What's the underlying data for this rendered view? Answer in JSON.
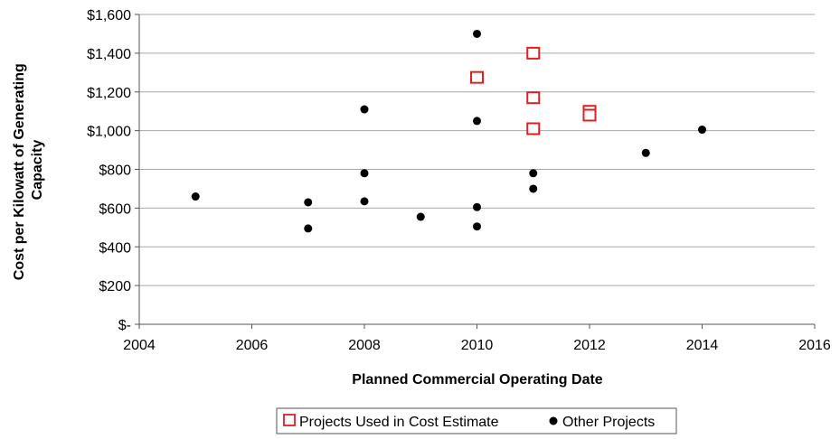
{
  "chart_data": {
    "type": "scatter",
    "title": "",
    "xlabel": "Planned Commercial Operating Date",
    "ylabel": "Cost per Kilowatt of Generating Capacity",
    "xlim": [
      2004,
      2016
    ],
    "ylim": [
      0,
      1600
    ],
    "x_ticks": [
      2004,
      2006,
      2008,
      2010,
      2012,
      2014,
      2016
    ],
    "x_tick_labels": [
      "2004",
      "2006",
      "2008",
      "2010",
      "2012",
      "2014",
      "2016"
    ],
    "y_ticks": [
      0,
      200,
      400,
      600,
      800,
      1000,
      1200,
      1400,
      1600
    ],
    "y_tick_labels": [
      "$-",
      "$200",
      "$400",
      "$600",
      "$800",
      "$1,000",
      "$1,200",
      "$1,400",
      "$1,600"
    ],
    "grid": "horizontal",
    "legend_position": "bottom",
    "series": [
      {
        "name": "Projects Used in Cost Estimate",
        "marker": "open-square",
        "color": "#e02020",
        "points": [
          {
            "x": 2010,
            "y": 1275
          },
          {
            "x": 2011,
            "y": 1400
          },
          {
            "x": 2011,
            "y": 1170
          },
          {
            "x": 2011,
            "y": 1010
          },
          {
            "x": 2012,
            "y": 1100
          },
          {
            "x": 2012,
            "y": 1080
          }
        ]
      },
      {
        "name": "Other Projects",
        "marker": "filled-circle",
        "color": "#000000",
        "points": [
          {
            "x": 2005,
            "y": 660
          },
          {
            "x": 2007,
            "y": 630
          },
          {
            "x": 2007,
            "y": 495
          },
          {
            "x": 2008,
            "y": 1110
          },
          {
            "x": 2008,
            "y": 780
          },
          {
            "x": 2008,
            "y": 635
          },
          {
            "x": 2009,
            "y": 555
          },
          {
            "x": 2010,
            "y": 1500
          },
          {
            "x": 2010,
            "y": 1050
          },
          {
            "x": 2010,
            "y": 605
          },
          {
            "x": 2010,
            "y": 505
          },
          {
            "x": 2011,
            "y": 780
          },
          {
            "x": 2011,
            "y": 700
          },
          {
            "x": 2013,
            "y": 885
          },
          {
            "x": 2014,
            "y": 1005
          }
        ]
      }
    ]
  }
}
